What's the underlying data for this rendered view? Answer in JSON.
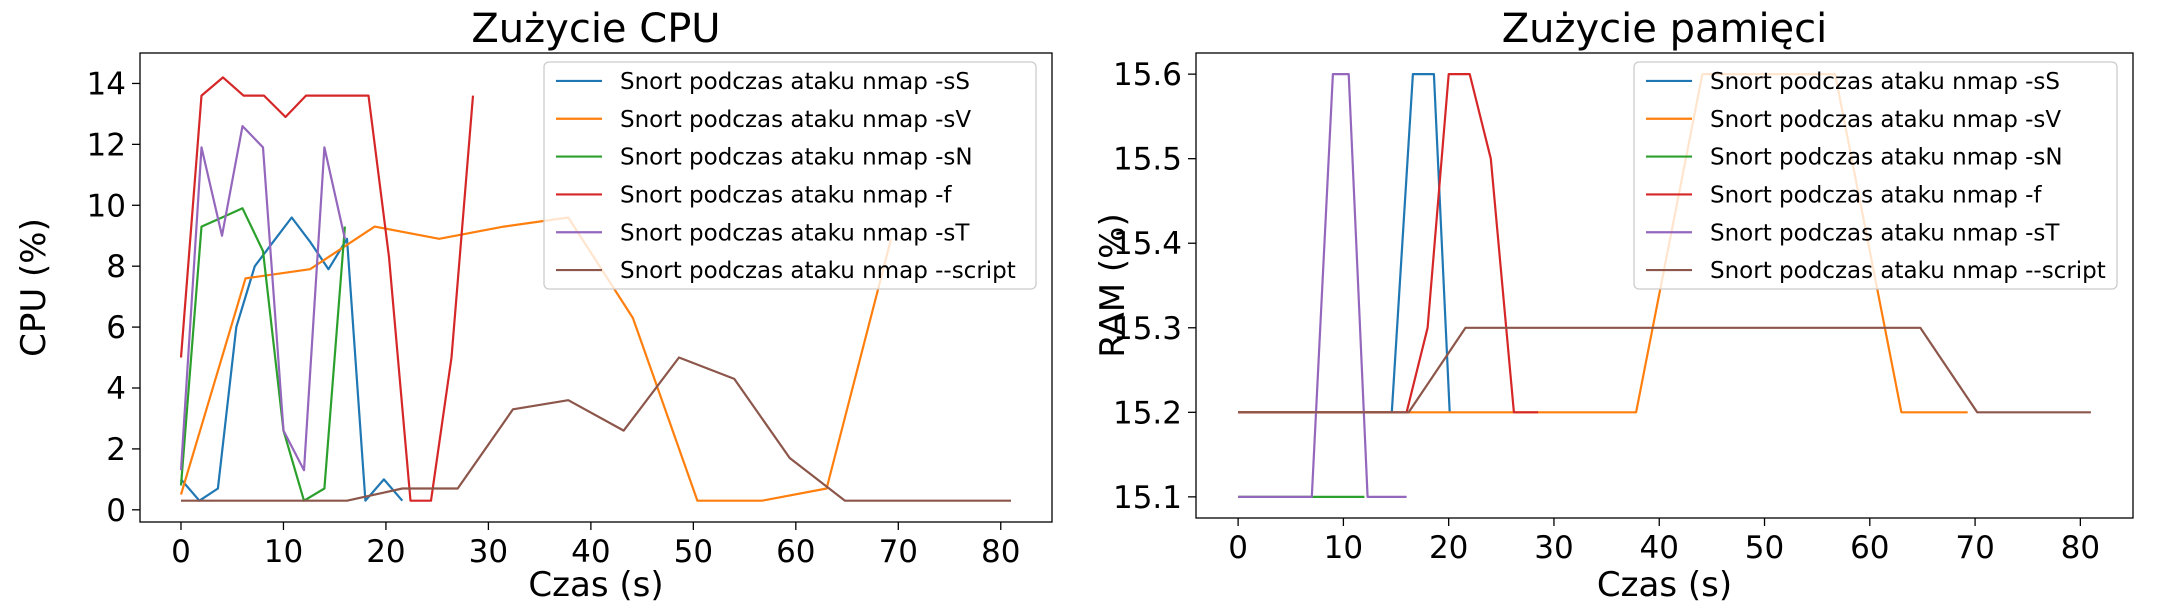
{
  "charts": [
    {
      "id": "cpu",
      "chart_data": {
        "type": "line",
        "title": "Zużycie CPU",
        "xlabel": "Czas (s)",
        "ylabel": "CPU (%)",
        "xlim": [
          -4,
          85
        ],
        "ylim": [
          -0.4,
          15
        ],
        "xticks": [
          0,
          10,
          20,
          30,
          40,
          50,
          60,
          70,
          80
        ],
        "yticks": [
          0,
          2,
          4,
          6,
          8,
          10,
          12,
          14
        ],
        "grid": false,
        "legend_position": "top-right",
        "series": [
          {
            "name": "Snort podczas ataku nmap -sS",
            "color": "#1f77b4",
            "x": [
              0,
              1.8,
              3.6,
              5.4,
              7.2,
              9,
              10.8,
              12.6,
              14.4,
              16.2,
              18,
              19.8,
              21.6
            ],
            "y": [
              1.0,
              0.3,
              0.7,
              6.0,
              8.0,
              8.8,
              9.6,
              8.8,
              7.9,
              8.9,
              0.3,
              1.0,
              0.3
            ]
          },
          {
            "name": "Snort podczas ataku nmap -sV",
            "color": "#ff7f0e",
            "x": [
              0,
              6.3,
              12.6,
              18.9,
              25.2,
              31.5,
              37.8,
              44.1,
              50.4,
              56.7,
              63,
              69.3
            ],
            "y": [
              0.5,
              7.6,
              7.9,
              9.3,
              8.9,
              9.3,
              9.6,
              6.3,
              0.3,
              0.3,
              0.7,
              8.9
            ]
          },
          {
            "name": "Snort podczas ataku nmap -sN",
            "color": "#2ca02c",
            "x": [
              0,
              2,
              4,
              6,
              8,
              10,
              12,
              14,
              16
            ],
            "y": [
              0.8,
              9.3,
              9.6,
              9.9,
              8.5,
              2.6,
              0.3,
              0.7,
              9.3
            ]
          },
          {
            "name": "Snort podczas ataku nmap -f",
            "color": "#d62728",
            "x": [
              0,
              2,
              4.1,
              6.1,
              8.1,
              10.2,
              12.2,
              14.2,
              16.3,
              18.3,
              20.3,
              22.4,
              24.4,
              26.4,
              28.5
            ],
            "y": [
              5.0,
              13.6,
              14.2,
              13.6,
              13.6,
              12.9,
              13.6,
              13.6,
              13.6,
              13.6,
              8.3,
              0.3,
              0.3,
              5.0,
              13.6
            ]
          },
          {
            "name": "Snort podczas ataku nmap -sT",
            "color": "#9467bd",
            "x": [
              0,
              2,
              4,
              6,
              8,
              10,
              12,
              14,
              16
            ],
            "y": [
              1.3,
              11.9,
              9.0,
              12.6,
              11.9,
              2.6,
              1.3,
              11.9,
              8.9
            ]
          },
          {
            "name": "Snort podczas ataku nmap --script",
            "color": "#8c564b",
            "x": [
              0,
              5.4,
              10.8,
              16.2,
              21.6,
              27,
              32.4,
              37.8,
              43.2,
              48.6,
              54,
              59.4,
              64.8,
              70.2,
              75.6,
              81
            ],
            "y": [
              0.3,
              0.3,
              0.3,
              0.3,
              0.7,
              0.7,
              3.3,
              3.6,
              2.6,
              5.0,
              4.3,
              1.7,
              0.3,
              0.3,
              0.3,
              0.3
            ]
          }
        ]
      }
    },
    {
      "id": "ram",
      "chart_data": {
        "type": "line",
        "title": "Zużycie pamięci",
        "xlabel": "Czas (s)",
        "ylabel": "RAM (%)",
        "xlim": [
          -4,
          85
        ],
        "ylim": [
          15.075,
          15.625
        ],
        "xticks": [
          0,
          10,
          20,
          30,
          40,
          50,
          60,
          70,
          80
        ],
        "yticks": [
          15.1,
          15.2,
          15.3,
          15.4,
          15.5,
          15.6
        ],
        "grid": false,
        "legend_position": "top-right",
        "series": [
          {
            "name": "Snort podczas ataku nmap -sS",
            "color": "#1f77b4",
            "x": [
              0,
              14.6,
              16.6,
              18.6,
              20.1
            ],
            "y": [
              15.2,
              15.2,
              15.6,
              15.6,
              15.2
            ]
          },
          {
            "name": "Snort podczas ataku nmap -sV",
            "color": "#ff7f0e",
            "x": [
              0,
              6.3,
              12.6,
              18.9,
              25.2,
              31.5,
              37.8,
              44.1,
              50.4,
              56.7,
              63,
              69.3
            ],
            "y": [
              15.2,
              15.2,
              15.2,
              15.2,
              15.2,
              15.2,
              15.2,
              15.6,
              15.6,
              15.6,
              15.2,
              15.2
            ]
          },
          {
            "name": "Snort podczas ataku nmap -sN",
            "color": "#2ca02c",
            "x": [
              0,
              2,
              4,
              6,
              8,
              10,
              12
            ],
            "y": [
              15.1,
              15.1,
              15.1,
              15.1,
              15.1,
              15.1,
              15.1
            ]
          },
          {
            "name": "Snort podczas ataku nmap -f",
            "color": "#d62728",
            "x": [
              0,
              16,
              18,
              20,
              22,
              24,
              26.2,
              28.5
            ],
            "y": [
              15.2,
              15.2,
              15.3,
              15.6,
              15.6,
              15.5,
              15.2,
              15.2
            ]
          },
          {
            "name": "Snort podczas ataku nmap -sT",
            "color": "#9467bd",
            "x": [
              0,
              7,
              9,
              10.5,
              12.3,
              16
            ],
            "y": [
              15.1,
              15.1,
              15.6,
              15.6,
              15.1,
              15.1
            ]
          },
          {
            "name": "Snort podczas ataku nmap --script",
            "color": "#8c564b",
            "x": [
              0,
              16.2,
              21.6,
              27,
              32.4,
              37.8,
              43.2,
              48.6,
              54,
              59.4,
              64.8,
              70.2,
              75.6,
              81
            ],
            "y": [
              15.2,
              15.2,
              15.3,
              15.3,
              15.3,
              15.3,
              15.3,
              15.3,
              15.3,
              15.3,
              15.3,
              15.2,
              15.2,
              15.2
            ]
          }
        ]
      }
    }
  ]
}
